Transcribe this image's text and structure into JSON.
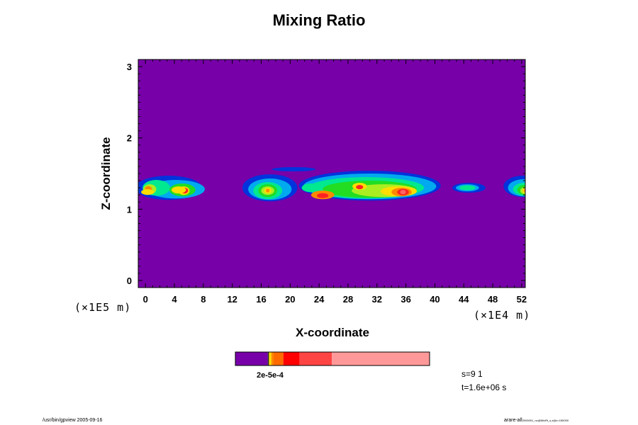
{
  "chart_data": {
    "type": "heatmap",
    "title": "Mixing Ratio",
    "xlabel": "X-coordinate",
    "ylabel": "Z-coordinate",
    "x_unit": "(×1E4 m)",
    "z_unit": "(×1E5 m)",
    "xlim": [
      -1,
      52.5
    ],
    "ylim": [
      -0.1,
      3.1
    ],
    "x_ticks": [
      "0",
      "4",
      "8",
      "12",
      "16",
      "20",
      "24",
      "28",
      "32",
      "36",
      "40",
      "44",
      "48",
      "52"
    ],
    "y_ticks": [
      "0",
      "1",
      "2",
      "3"
    ],
    "background_color": "#7700a8",
    "levels": [
      {
        "name": "background",
        "color": "#7700a8"
      },
      {
        "name": "l1",
        "color": "#0033dd"
      },
      {
        "name": "l2",
        "color": "#00aaee"
      },
      {
        "name": "l3",
        "color": "#00e890"
      },
      {
        "name": "l4",
        "color": "#22dd22"
      },
      {
        "name": "l5",
        "color": "#aaee22"
      },
      {
        "name": "l6",
        "color": "#ffdd00"
      },
      {
        "name": "l7",
        "color": "#ff8800"
      },
      {
        "name": "l8",
        "color": "#ff2222"
      },
      {
        "name": "l9",
        "color": "#ff6666"
      },
      {
        "name": "l10",
        "color": "#ff9999"
      }
    ],
    "features": [
      {
        "name": "plume-left",
        "x_range": [
          -1,
          8.5
        ],
        "z_range": [
          1.1,
          1.48
        ],
        "peak": 8
      },
      {
        "name": "plume-mid",
        "x_range": [
          12.5,
          21
        ],
        "z_range": [
          1.08,
          1.5
        ],
        "peak": 7
      },
      {
        "name": "plume-main",
        "x_range": [
          21,
          41
        ],
        "z_range": [
          1.08,
          1.55
        ],
        "peak": 9
      },
      {
        "name": "tongue",
        "x_range": [
          17.5,
          23.5
        ],
        "z_range": [
          1.48,
          1.62
        ],
        "peak": 1
      },
      {
        "name": "plume-small",
        "x_range": [
          42.3,
          47
        ],
        "z_range": [
          1.22,
          1.38
        ],
        "peak": 3
      },
      {
        "name": "plume-right",
        "x_range": [
          49.5,
          52.5
        ],
        "z_range": [
          1.15,
          1.48
        ],
        "peak": 7
      }
    ],
    "colorbar": {
      "label": "2e-5e-4",
      "segments": [
        {
          "color": "#7700a8",
          "fraction": 0.167
        },
        {
          "color": "#222222",
          "fraction": 0.006
        },
        {
          "color": "#ffdd00",
          "fraction": 0.012
        },
        {
          "color": "#ff8800",
          "fraction": 0.012
        },
        {
          "color": "#ff6a00",
          "fraction": 0.05
        },
        {
          "color": "#ff0000",
          "fraction": 0.083
        },
        {
          "color": "#ff4444",
          "fraction": 0.167
        },
        {
          "color": "#ff9999",
          "fraction": 0.503
        }
      ]
    }
  },
  "info": {
    "scale": "s=9 1",
    "time": "t=1.6e+06 s"
  },
  "footer": {
    "left": "/usr/bin/gpview 2005-09-16",
    "right_main": "arare-all",
    "right_sub": "2005091_nc@MixRt_s,z@z=150000"
  }
}
